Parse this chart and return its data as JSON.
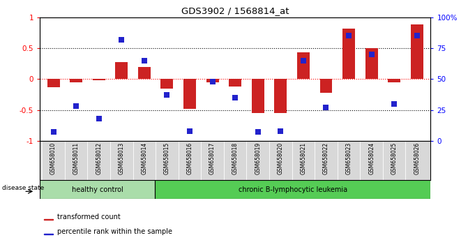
{
  "title": "GDS3902 / 1568814_at",
  "samples": [
    "GSM658010",
    "GSM658011",
    "GSM658012",
    "GSM658013",
    "GSM658014",
    "GSM658015",
    "GSM658016",
    "GSM658017",
    "GSM658018",
    "GSM658019",
    "GSM658020",
    "GSM658021",
    "GSM658022",
    "GSM658023",
    "GSM658024",
    "GSM658025",
    "GSM658026"
  ],
  "red_bars": [
    -0.13,
    -0.05,
    -0.02,
    0.27,
    0.2,
    -0.15,
    -0.48,
    -0.05,
    -0.12,
    -0.55,
    -0.55,
    0.43,
    -0.22,
    0.82,
    0.5,
    -0.05,
    0.88
  ],
  "blue_dots_pct": [
    7,
    28,
    18,
    82,
    65,
    37,
    8,
    48,
    35,
    7,
    8,
    65,
    27,
    85,
    70,
    30,
    85
  ],
  "healthy_count": 5,
  "disease_label_healthy": "healthy control",
  "disease_label_leukemia": "chronic B-lymphocytic leukemia",
  "disease_state_label": "disease state",
  "legend_red": "transformed count",
  "legend_blue": "percentile rank within the sample",
  "bar_color": "#cc2222",
  "dot_color": "#2222cc",
  "healthy_color": "#aaddaa",
  "leukemia_color": "#55cc55",
  "bg_color": "#ffffff"
}
